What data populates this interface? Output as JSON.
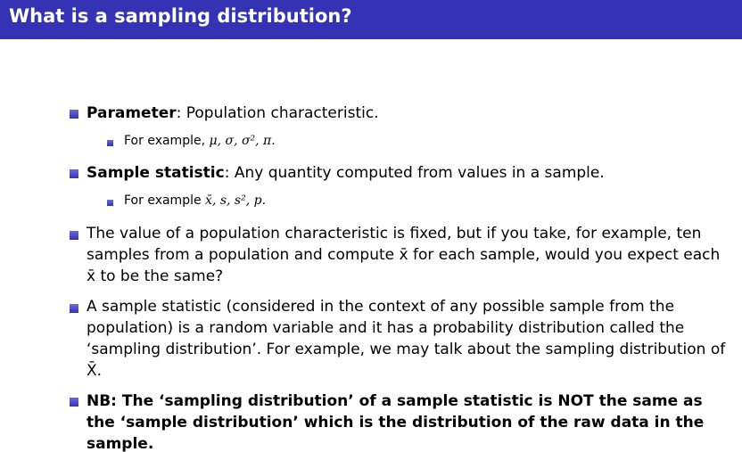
{
  "slide": {
    "title": "What is a sampling distribution?",
    "accent_color": "#3333b3"
  },
  "bullets": {
    "parameter": {
      "term": "Parameter",
      "rest": ": Population characteristic.",
      "example_prefix": "For example, ",
      "example_symbols": "μ, σ, σ², π."
    },
    "statistic": {
      "term": "Sample statistic",
      "rest": ": Any quantity computed from values in a sample.",
      "example_prefix": "For example ",
      "example_symbols": "x̄, s, s², p."
    },
    "fixed_value": {
      "text": "The value of a population characteristic is fixed, but if you take, for example, ten samples from a population and compute x̄ for each sample, would you expect each x̄ to be the same?"
    },
    "random_variable": {
      "text": "A sample statistic (considered in the context of any possible sample from the population) is a random variable and it has a probability distribution called the ‘sampling distribution’. For example, we may talk about the sampling distribution of X̄."
    },
    "nb": {
      "text": "NB: The ‘sampling distribution’ of a sample statistic is NOT the same as the ‘sample distribution’ which is the distribution of the raw data in the sample."
    }
  }
}
